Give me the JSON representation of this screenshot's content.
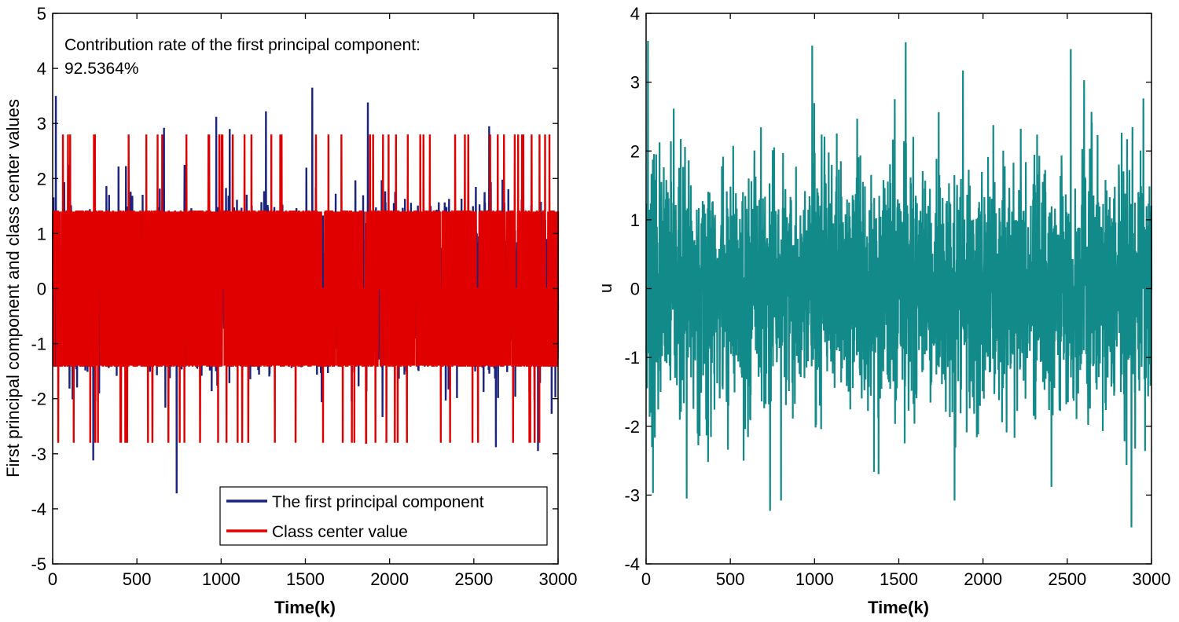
{
  "chart_data": [
    {
      "type": "line",
      "title": "",
      "xlabel": "Time(k)",
      "ylabel": "First principal component and class center values",
      "xlim": [
        0,
        3000
      ],
      "ylim": [
        -5,
        5
      ],
      "xticks": [
        0,
        500,
        1000,
        1500,
        2000,
        2500,
        3000
      ],
      "yticks": [
        -5,
        -4,
        -3,
        -2,
        -1,
        0,
        1,
        2,
        3,
        4,
        5
      ],
      "grid": false,
      "legend_position": "bottom-right",
      "annotation": {
        "line1": "Contribution rate of the first principal component:",
        "line2": "92.5364%"
      },
      "series": [
        {
          "name": "The first principal component",
          "color": "#1a237e",
          "values_description": "noisy signal, sample count 3000",
          "seed": 7,
          "peaks": [
            {
              "x": 18,
              "y": 3.5
            },
            {
              "x": 660,
              "y": 2.92
            },
            {
              "x": 735,
              "y": -3.72
            },
            {
              "x": 970,
              "y": 3.12
            },
            {
              "x": 1050,
              "y": 2.9
            },
            {
              "x": 1265,
              "y": 3.22
            },
            {
              "x": 1540,
              "y": 3.65
            },
            {
              "x": 1870,
              "y": 3.38
            },
            {
              "x": 240,
              "y": -3.12
            },
            {
              "x": 2590,
              "y": 2.95
            },
            {
              "x": 2880,
              "y": -2.95
            },
            {
              "x": 2630,
              "y": -2.88
            }
          ]
        },
        {
          "name": "Class center value",
          "color": "#e00000",
          "levels": [
            -2.8,
            -1.4,
            0,
            1.4,
            2.8
          ],
          "seed": 11
        }
      ]
    },
    {
      "type": "line",
      "title": "",
      "xlabel": "Time(k)",
      "ylabel": "u",
      "xlim": [
        0,
        3000
      ],
      "ylim": [
        -4,
        4
      ],
      "xticks": [
        0,
        500,
        1000,
        1500,
        2000,
        2500,
        3000
      ],
      "yticks": [
        -4,
        -3,
        -2,
        -1,
        0,
        1,
        2,
        3,
        4
      ],
      "grid": false,
      "series": [
        {
          "name": "u",
          "color": "#138a8a",
          "seed": 23,
          "peaks": [
            {
              "x": 10,
              "y": 3.6
            },
            {
              "x": 40,
              "y": -2.97
            },
            {
              "x": 240,
              "y": -3.05
            },
            {
              "x": 735,
              "y": -3.23
            },
            {
              "x": 800,
              "y": -3.08
            },
            {
              "x": 985,
              "y": 3.53
            },
            {
              "x": 1540,
              "y": 3.58
            },
            {
              "x": 1830,
              "y": -3.08
            },
            {
              "x": 1880,
              "y": 3.17
            },
            {
              "x": 2520,
              "y": 3.48
            },
            {
              "x": 2880,
              "y": -3.47
            },
            {
              "x": 2405,
              "y": -2.88
            }
          ]
        }
      ]
    }
  ]
}
